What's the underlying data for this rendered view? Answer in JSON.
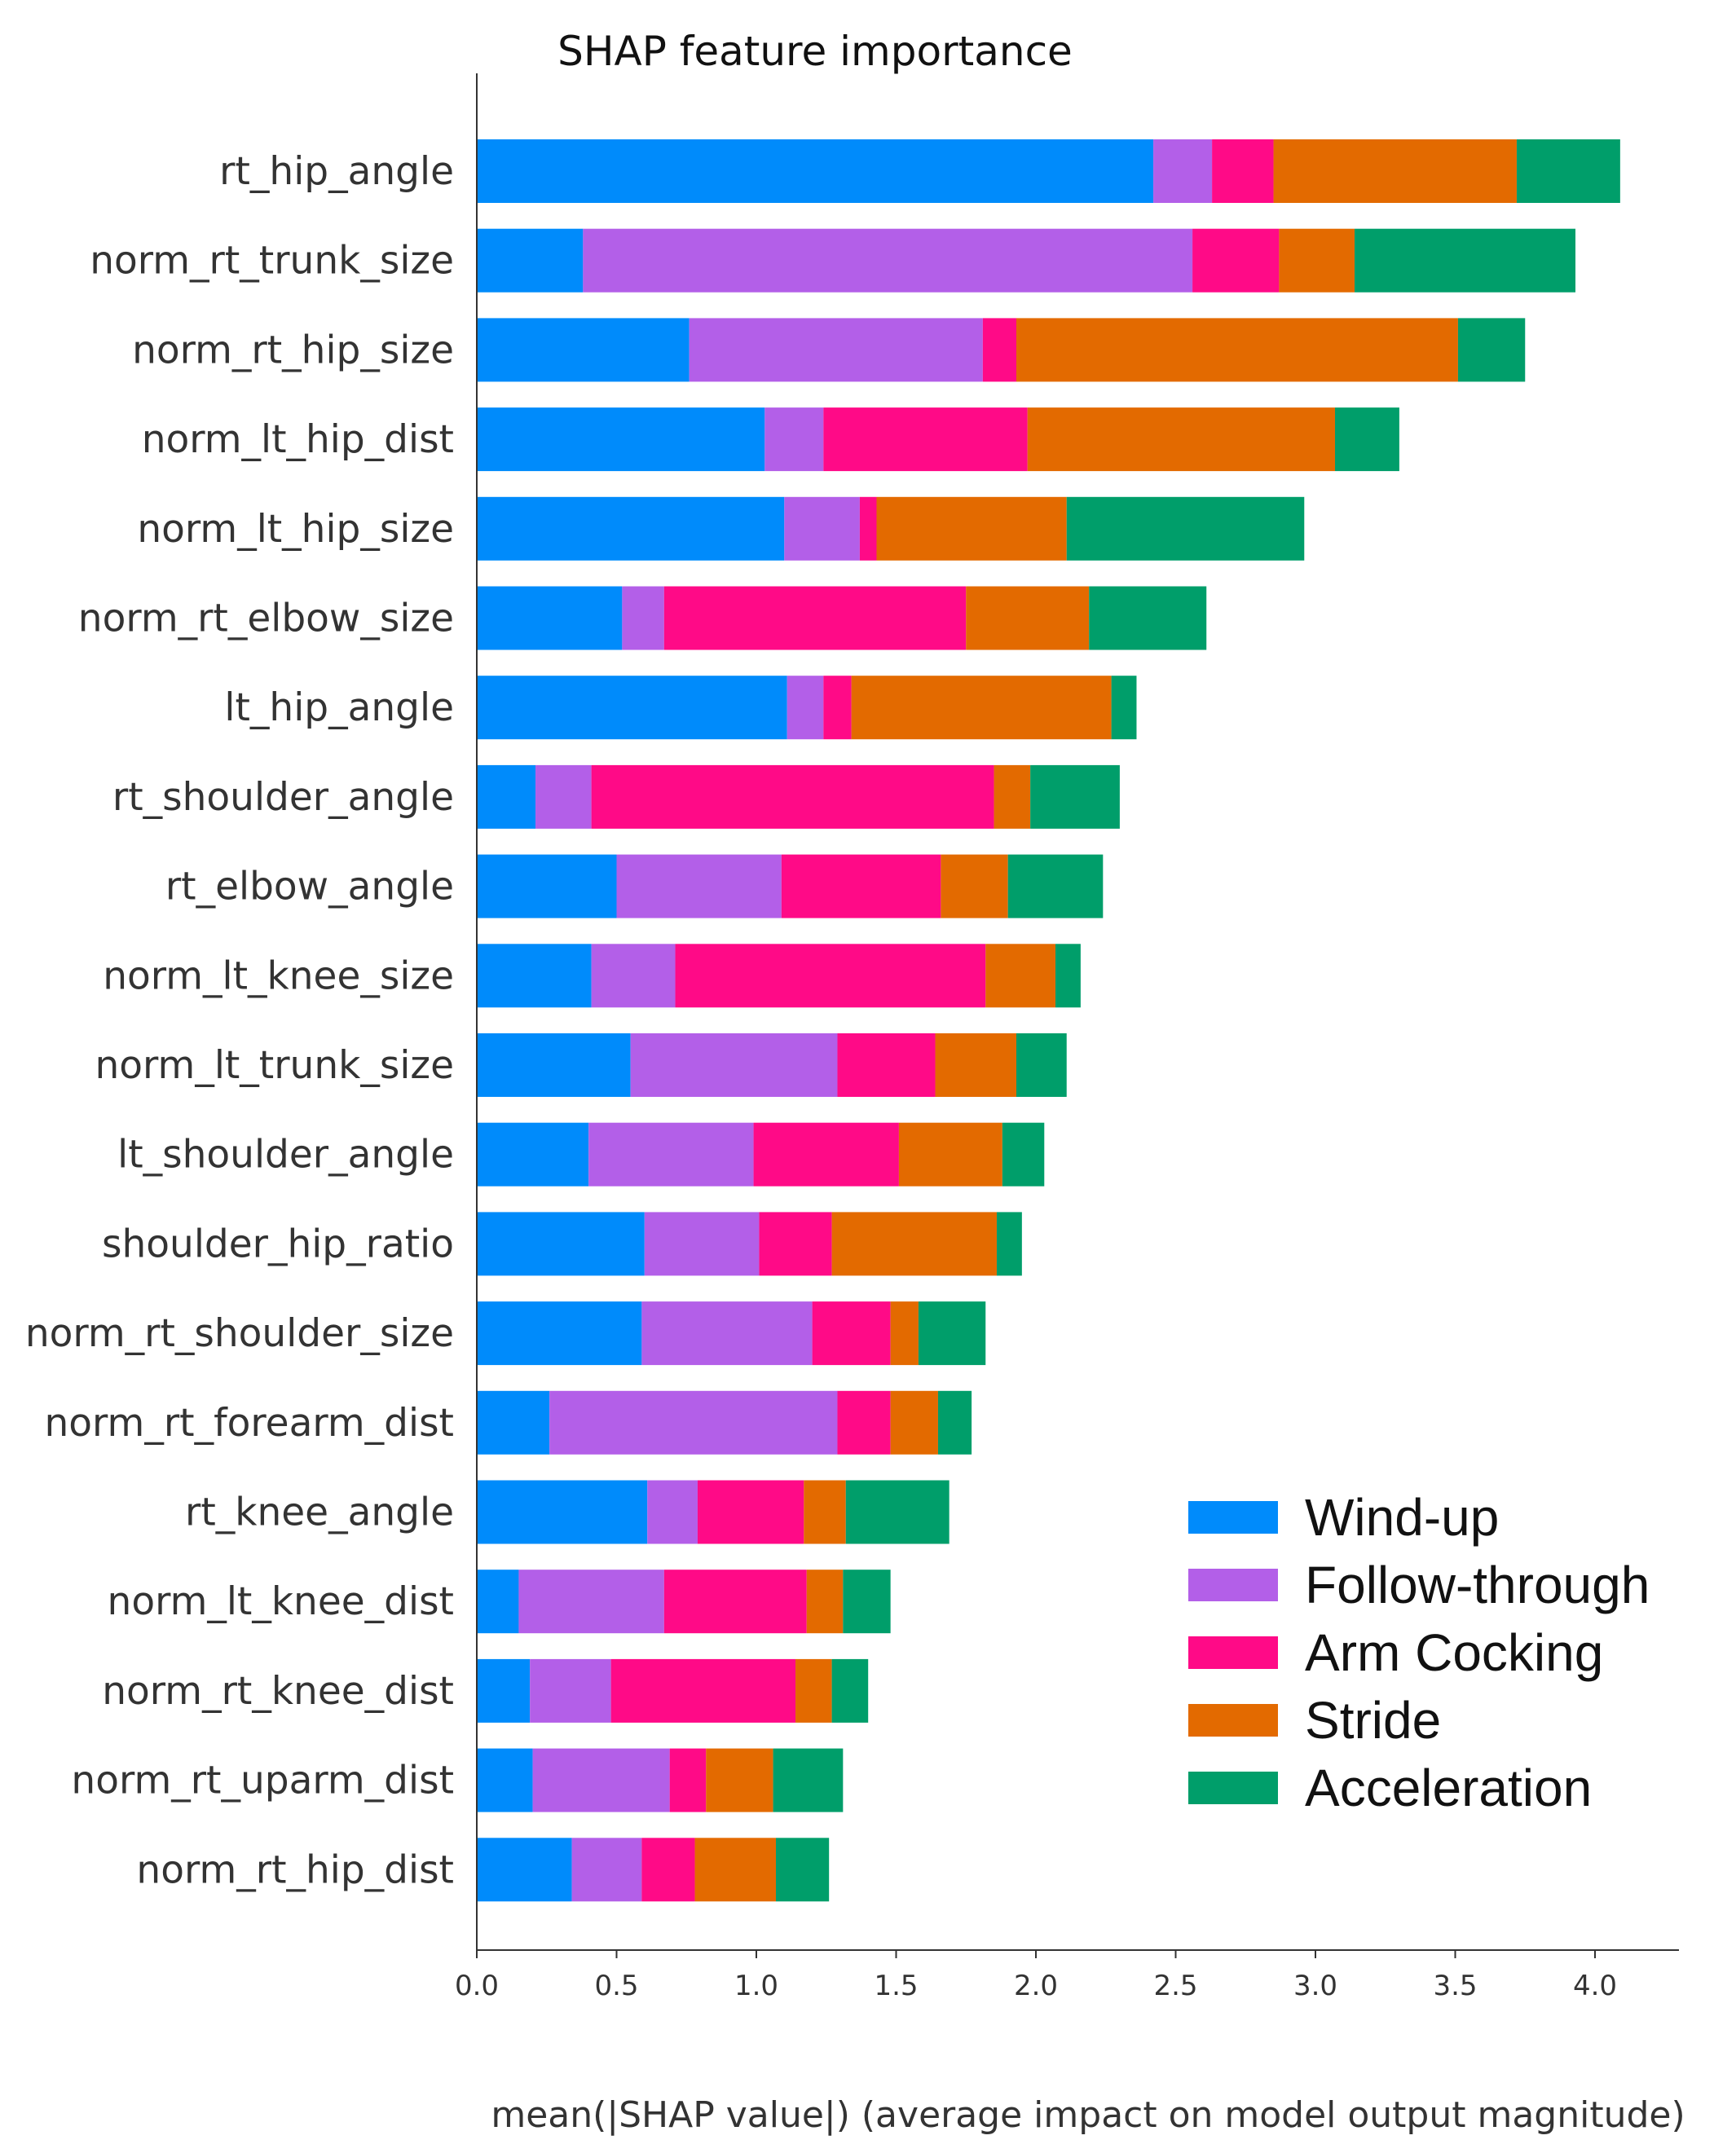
{
  "chart_data": {
    "type": "bar",
    "orientation": "horizontal",
    "stacked": true,
    "title": "SHAP feature importance",
    "xlabel": "mean(|SHAP value|) (average impact on model output magnitude)",
    "ylabel": "",
    "xlim": [
      0,
      4.3
    ],
    "xticks": [
      "0.0",
      "0.5",
      "1.0",
      "1.5",
      "2.0",
      "2.5",
      "3.0",
      "3.5",
      "4.0"
    ],
    "grid": false,
    "legend_position": "lower-right",
    "categories": [
      "rt_hip_angle",
      "norm_rt_trunk_size",
      "norm_rt_hip_size",
      "norm_lt_hip_dist",
      "norm_lt_hip_size",
      "norm_rt_elbow_size",
      "lt_hip_angle",
      "rt_shoulder_angle",
      "rt_elbow_angle",
      "norm_lt_knee_size",
      "norm_lt_trunk_size",
      "lt_shoulder_angle",
      "shoulder_hip_ratio",
      "norm_rt_shoulder_size",
      "norm_rt_forearm_dist",
      "rt_knee_angle",
      "norm_lt_knee_dist",
      "norm_rt_knee_dist",
      "norm_rt_uparm_dist",
      "norm_rt_hip_dist"
    ],
    "series": [
      {
        "name": "Wind-up",
        "color": "#008bfb",
        "values": [
          2.42,
          0.38,
          0.76,
          1.03,
          1.1,
          0.52,
          1.11,
          0.21,
          0.5,
          0.41,
          0.55,
          0.4,
          0.6,
          0.59,
          0.26,
          0.61,
          0.15,
          0.19,
          0.2,
          0.34
        ]
      },
      {
        "name": "Follow-through",
        "color": "#b35fe8",
        "values": [
          0.21,
          2.18,
          1.05,
          0.21,
          0.27,
          0.15,
          0.13,
          0.2,
          0.59,
          0.3,
          0.74,
          0.59,
          0.41,
          0.61,
          1.03,
          0.18,
          0.52,
          0.29,
          0.49,
          0.25
        ]
      },
      {
        "name": "Arm Cocking",
        "color": "#ff0a87",
        "values": [
          0.22,
          0.31,
          0.12,
          0.73,
          0.06,
          1.08,
          0.1,
          1.44,
          0.57,
          1.11,
          0.35,
          0.52,
          0.26,
          0.28,
          0.19,
          0.38,
          0.51,
          0.66,
          0.13,
          0.19
        ]
      },
      {
        "name": "Stride",
        "color": "#e36a00",
        "values": [
          0.87,
          0.27,
          1.58,
          1.1,
          0.68,
          0.44,
          0.93,
          0.13,
          0.24,
          0.25,
          0.29,
          0.37,
          0.59,
          0.1,
          0.17,
          0.15,
          0.13,
          0.13,
          0.24,
          0.29
        ]
      },
      {
        "name": "Acceleration",
        "color": "#009e6a",
        "values": [
          0.37,
          0.79,
          0.24,
          0.23,
          0.85,
          0.42,
          0.09,
          0.32,
          0.34,
          0.09,
          0.18,
          0.15,
          0.09,
          0.24,
          0.12,
          0.37,
          0.17,
          0.13,
          0.25,
          0.19
        ]
      }
    ]
  }
}
